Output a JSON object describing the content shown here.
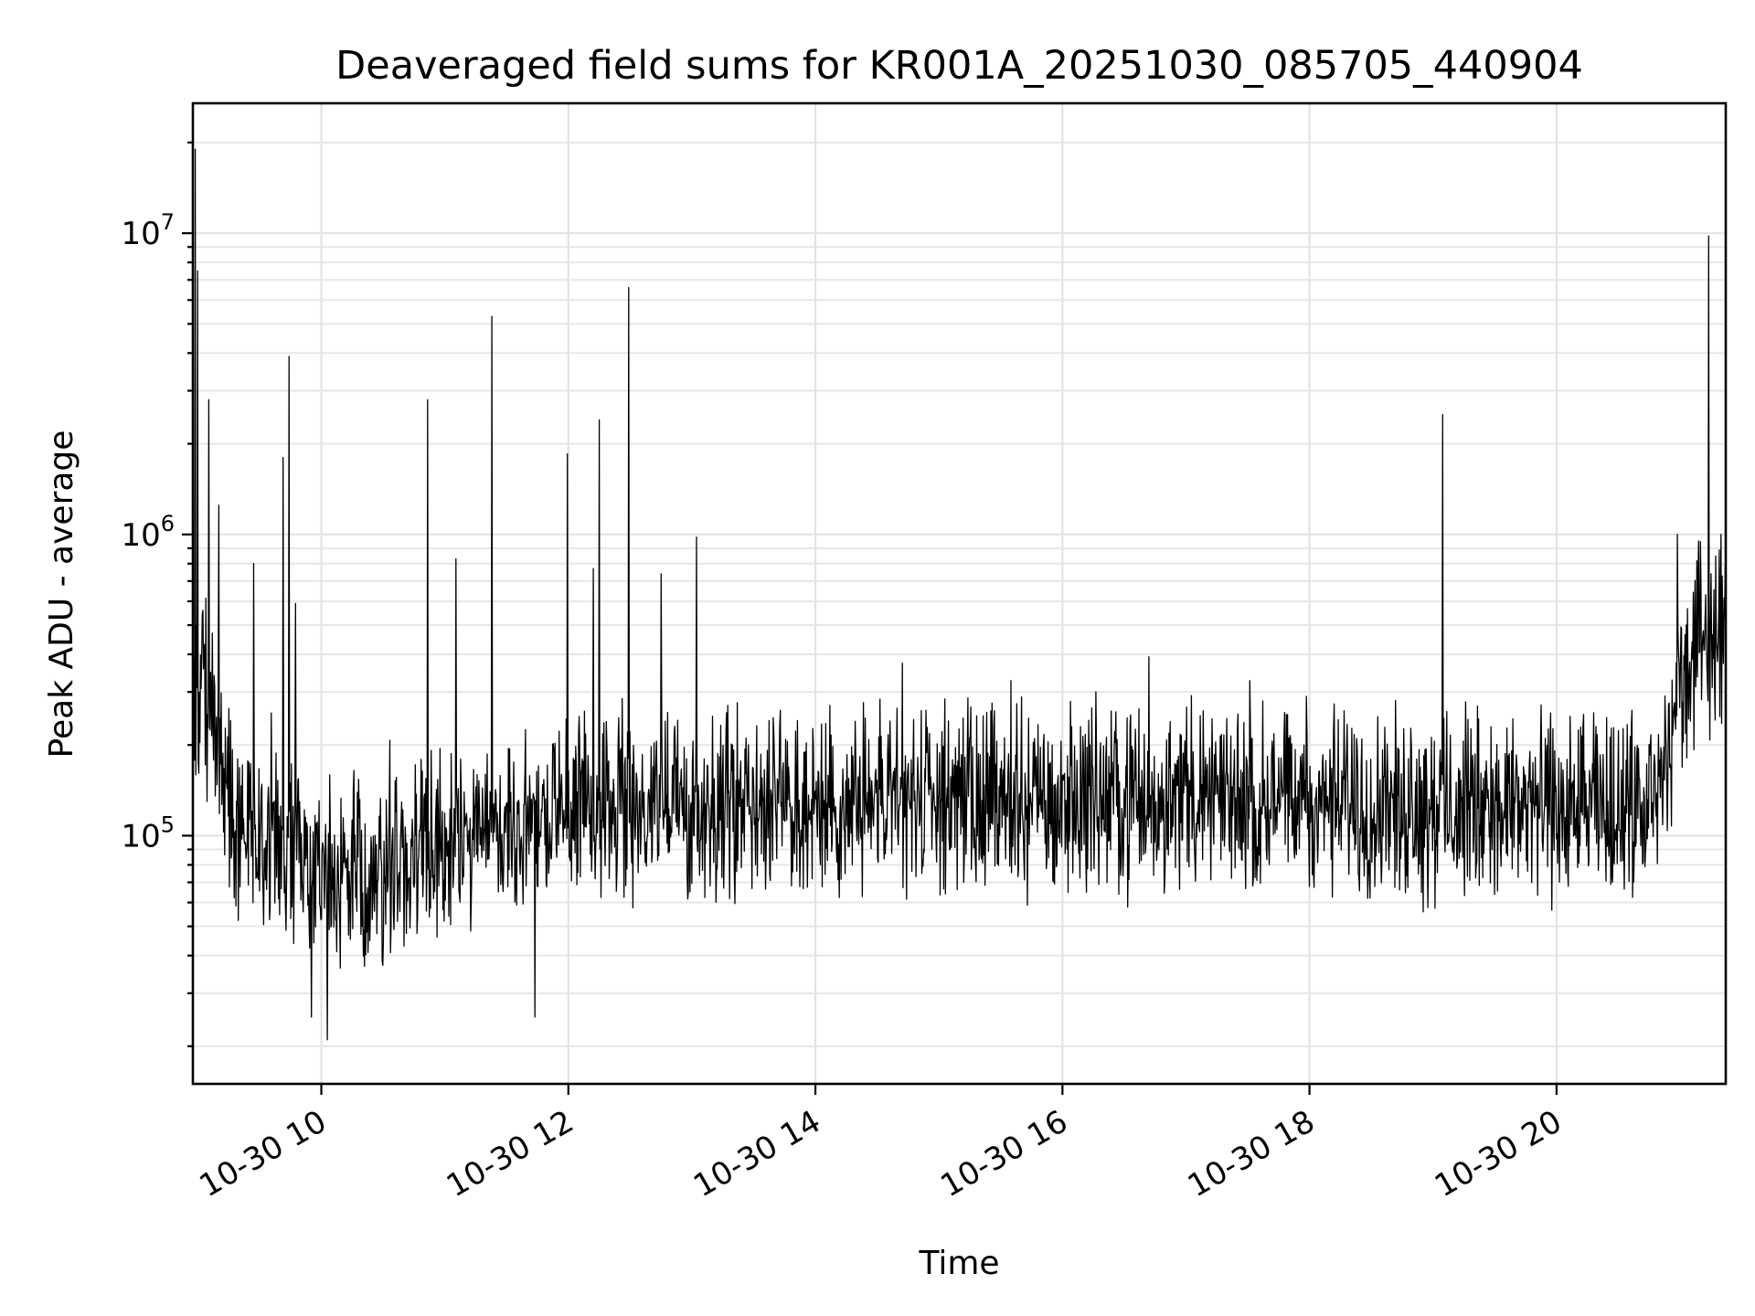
{
  "chart_data": {
    "type": "line",
    "title": "Deaveraged field sums for KR001A_20251030_085705_440904",
    "xlabel": "Time",
    "ylabel": "Peak ADU - average",
    "yscale": "log",
    "ylim": [
      15000,
      27000000
    ],
    "xlim_hours": [
      8.96,
      21.37
    ],
    "grid": true,
    "legend": "none",
    "x_ticks": [
      {
        "hour": 10,
        "label": "10-30 10"
      },
      {
        "hour": 12,
        "label": "10-30 12"
      },
      {
        "hour": 14,
        "label": "10-30 14"
      },
      {
        "hour": 16,
        "label": "10-30 16"
      },
      {
        "hour": 18,
        "label": "10-30 18"
      },
      {
        "hour": 20,
        "label": "10-30 20"
      }
    ],
    "y_ticks": [
      {
        "value": 100000,
        "base": "10",
        "exp": "5"
      },
      {
        "value": 1000000,
        "base": "10",
        "exp": "6"
      },
      {
        "value": 10000000,
        "base": "10",
        "exp": "7"
      }
    ],
    "series": [
      {
        "name": "deaveraged field sums",
        "color": "#000000",
        "baseline": [
          [
            8.96,
            280000
          ],
          [
            9.05,
            330000
          ],
          [
            9.15,
            220000
          ],
          [
            9.3,
            130000
          ],
          [
            9.5,
            100000
          ],
          [
            9.75,
            90000
          ],
          [
            10.0,
            80000
          ],
          [
            10.3,
            80000
          ],
          [
            10.6,
            85000
          ],
          [
            10.9,
            100000
          ],
          [
            11.2,
            110000
          ],
          [
            11.5,
            120000
          ],
          [
            11.8,
            125000
          ],
          [
            12.2,
            130000
          ],
          [
            12.6,
            135000
          ],
          [
            13.0,
            140000
          ],
          [
            13.5,
            138000
          ],
          [
            14.0,
            135000
          ],
          [
            15.0,
            138000
          ],
          [
            16.0,
            140000
          ],
          [
            17.0,
            140000
          ],
          [
            18.0,
            138000
          ],
          [
            19.0,
            135000
          ],
          [
            20.0,
            132000
          ],
          [
            20.8,
            130000
          ],
          [
            20.9,
            200000
          ],
          [
            21.0,
            320000
          ],
          [
            21.1,
            420000
          ],
          [
            21.2,
            480000
          ],
          [
            21.3,
            500000
          ],
          [
            21.37,
            520000
          ]
        ],
        "spikes": [
          [
            8.98,
            19000000
          ],
          [
            9.0,
            7500000
          ],
          [
            9.04,
            560000
          ],
          [
            9.09,
            2800000
          ],
          [
            9.17,
            1250000
          ],
          [
            9.45,
            800000
          ],
          [
            9.69,
            1800000
          ],
          [
            9.74,
            3900000
          ],
          [
            9.79,
            590000
          ],
          [
            10.86,
            2800000
          ],
          [
            11.09,
            830000
          ],
          [
            11.38,
            5300000
          ],
          [
            11.73,
            25000
          ],
          [
            11.99,
            1850000
          ],
          [
            12.2,
            770000
          ],
          [
            12.25,
            2400000
          ],
          [
            12.49,
            6600000
          ],
          [
            12.75,
            740000
          ],
          [
            13.04,
            980000
          ],
          [
            10.05,
            21000
          ],
          [
            9.92,
            25000
          ],
          [
            19.08,
            2500000
          ],
          [
            21.23,
            9800000
          ],
          [
            20.98,
            1000000
          ],
          [
            21.33,
            1000000
          ]
        ],
        "noise_band": {
          "low_factor": 0.4,
          "high_factor": 2.2
        }
      }
    ]
  }
}
